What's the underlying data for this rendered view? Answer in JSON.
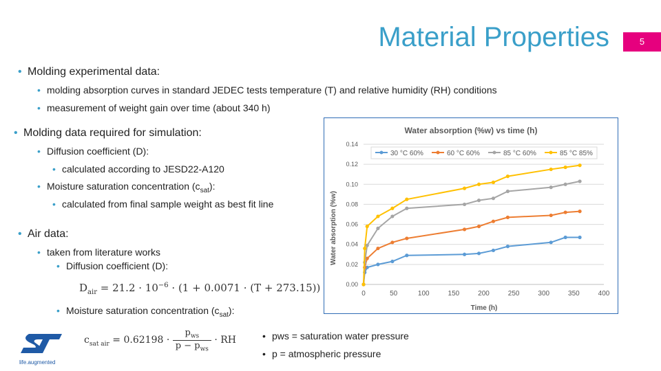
{
  "slide": {
    "title": "Material Properties",
    "page_number": "5"
  },
  "bullets": {
    "molding_exp": "Molding experimental data:",
    "molding_exp_1": "molding absorption curves in standard JEDEC tests temperature (T) and relative humidity (RH) conditions",
    "molding_exp_2": "measurement of weight gain over time (about 340 h)",
    "molding_sim": "Molding data required for simulation:",
    "diffusion": "Diffusion coefficient (D):",
    "diffusion_sub": "calculated according to JESD22-A120",
    "moisture_pre": "Moisture saturation concentration (c",
    "moisture_sub": "sat",
    "moisture_post": "):",
    "moisture_calc": "calculated from final sample weight as best fit line",
    "air": "Air data:",
    "air_1": "taken from literature works",
    "air_diff": "Diffusion coefficient (D):",
    "air_moist_pre": "Moisture saturation concentration (c",
    "air_moist_sub": "sat",
    "air_moist_post": "):",
    "pws_def": "pws = saturation water pressure",
    "p_def": "p = atmospheric pressure"
  },
  "formulas": {
    "d_air": "D",
    "d_air_sub": "air",
    "d_air_expr": " = 21.2 · 10",
    "d_air_exp": "−6",
    "d_air_rest": " · (1 + 0.0071 · (T + 273.15))",
    "c_sat_lhs": "c",
    "c_sat_sub": "sat air",
    "c_sat_eq": " = 0.62198 ·",
    "c_sat_num": "p",
    "c_sat_num_sub": "ws",
    "c_sat_den": "p − p",
    "c_sat_den_sub": "ws",
    "c_sat_rh": "· RH"
  },
  "logo": {
    "text": "life.augmented"
  },
  "colors": {
    "accent": "#3a9fc9",
    "page_badge": "#e6007e",
    "s30": "#5b9bd5",
    "s60": "#ed7d31",
    "s85_60": "#a5a5a5",
    "s85_85": "#ffc000"
  },
  "chart_data": {
    "type": "line",
    "title": "Water absorption (%w) vs time (h)",
    "xlabel": "Time (h)",
    "ylabel": "Water absorption (%w)",
    "xlim": [
      0,
      400
    ],
    "ylim": [
      0,
      0.14
    ],
    "x_ticks": [
      "0",
      "50",
      "100",
      "150",
      "200",
      "250",
      "300",
      "350",
      "400"
    ],
    "y_ticks": [
      "0.00",
      "0.02",
      "0.04",
      "0.06",
      "0.08",
      "0.10",
      "0.12",
      "0.14"
    ],
    "legend_position": "top",
    "grid": "horizontal",
    "series": [
      {
        "name": "30 °C 60%",
        "color": "#5b9bd5",
        "x": [
          0,
          2,
          6,
          24,
          48,
          72,
          168,
          192,
          216,
          240,
          312,
          336,
          360
        ],
        "y": [
          0.0,
          0.012,
          0.017,
          0.02,
          0.023,
          0.029,
          0.03,
          0.031,
          0.034,
          0.038,
          0.042,
          0.047,
          0.047
        ]
      },
      {
        "name": "60 °C 60%",
        "color": "#ed7d31",
        "x": [
          0,
          2,
          6,
          24,
          48,
          72,
          168,
          192,
          216,
          240,
          312,
          336,
          360
        ],
        "y": [
          0.0,
          0.017,
          0.026,
          0.036,
          0.042,
          0.046,
          0.055,
          0.058,
          0.063,
          0.067,
          0.069,
          0.072,
          0.073
        ]
      },
      {
        "name": "85 °C 60%",
        "color": "#a5a5a5",
        "x": [
          0,
          2,
          6,
          24,
          48,
          72,
          168,
          192,
          216,
          240,
          312,
          336,
          360
        ],
        "y": [
          0.0,
          0.022,
          0.039,
          0.056,
          0.068,
          0.076,
          0.08,
          0.084,
          0.086,
          0.093,
          0.097,
          0.1,
          0.103
        ]
      },
      {
        "name": "85 °C 85%",
        "color": "#ffc000",
        "x": [
          0,
          2,
          6,
          24,
          48,
          72,
          168,
          192,
          216,
          240,
          312,
          336,
          360
        ],
        "y": [
          0.0,
          0.036,
          0.058,
          0.068,
          0.076,
          0.085,
          0.096,
          0.1,
          0.102,
          0.108,
          0.115,
          0.117,
          0.119
        ]
      }
    ]
  }
}
